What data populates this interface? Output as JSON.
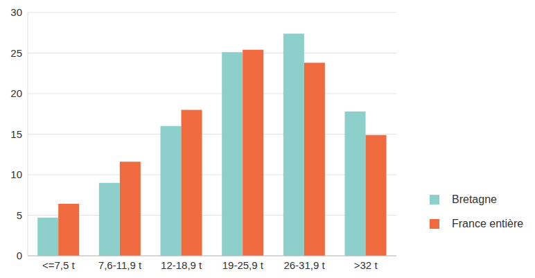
{
  "chart_data": {
    "type": "bar",
    "categories": [
      "<=7,5 t",
      "7,6-11,9 t",
      "12-18,9 t",
      "19-25,9 t",
      "26-31,9 t",
      ">32 t"
    ],
    "series": [
      {
        "name": "Bretagne",
        "color": "#8ccfcb",
        "values": [
          4.7,
          9.0,
          16.0,
          25.1,
          27.4,
          17.8
        ]
      },
      {
        "name": "France entière",
        "color": "#ef6b3f",
        "values": [
          6.4,
          11.6,
          18.0,
          25.4,
          23.8,
          14.9
        ]
      }
    ],
    "ylim": [
      0,
      30
    ],
    "yticks": [
      0,
      5,
      10,
      15,
      20,
      25,
      30
    ],
    "grid": true,
    "legend": "right"
  }
}
